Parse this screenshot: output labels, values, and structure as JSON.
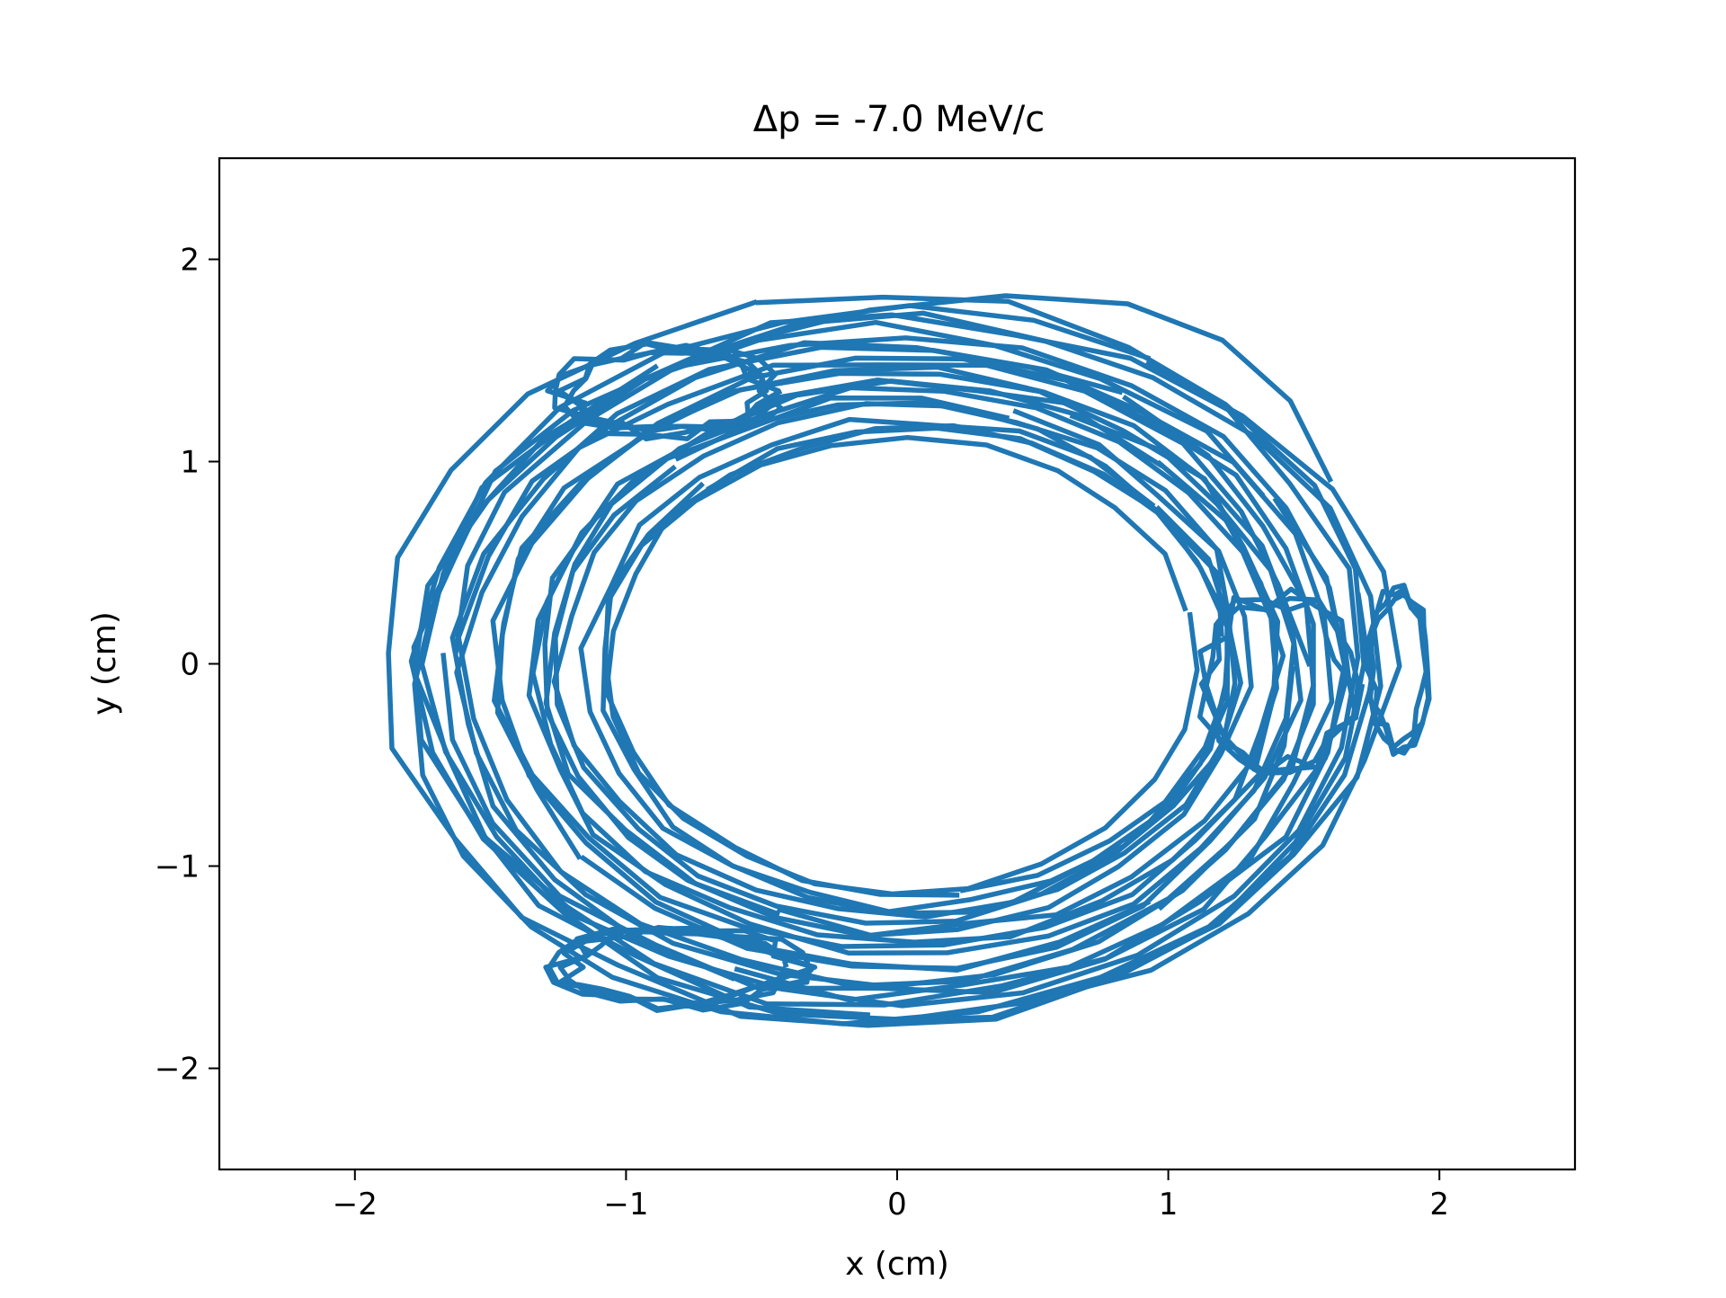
{
  "chart_data": {
    "type": "line",
    "title": "Δp = -7.0 MeV/c",
    "xlabel": "x (cm)",
    "ylabel": "y (cm)",
    "xlim": [
      -2.5,
      2.5
    ],
    "ylim": [
      -2.5,
      2.5
    ],
    "xticks": [
      -2,
      -1,
      0,
      1,
      2
    ],
    "yticks": [
      -2,
      -1,
      0,
      1,
      2
    ],
    "xtick_labels": [
      "−2",
      "−1",
      "0",
      "1",
      "2"
    ],
    "ytick_labels": [
      "−2",
      "−1",
      "0",
      "1",
      "2"
    ],
    "grid": false,
    "legend": "none",
    "color": "#1f77b4",
    "series": [
      {
        "x": [
          1.6,
          1.45,
          1.2,
          0.85,
          0.4,
          -0.1,
          -0.55,
          -0.95,
          -1.3,
          -1.55,
          -1.7,
          -1.78,
          -1.75,
          -1.6,
          -1.35,
          -1.05,
          -0.65,
          -0.2,
          0.3,
          0.75,
          1.15,
          1.45,
          1.65,
          1.75,
          1.7
        ],
        "y": [
          0.9,
          1.3,
          1.6,
          1.78,
          1.82,
          1.75,
          1.6,
          1.4,
          1.12,
          0.75,
          0.35,
          -0.1,
          -0.55,
          -0.95,
          -1.3,
          -1.55,
          -1.72,
          -1.78,
          -1.72,
          -1.55,
          -1.3,
          -0.95,
          -0.55,
          -0.1,
          0.35
        ]
      }
    ],
    "ellipse_family": {
      "rings": 22,
      "outer_semi_axes": [
        1.82,
        1.8
      ],
      "inner_semi_axes": [
        1.1,
        1.12
      ],
      "outer_center": [
        -0.02,
        0.0
      ],
      "inner_center": [
        0.02,
        0.0
      ],
      "points_per_ring": 24
    },
    "small_loops": [
      {
        "center": [
          1.85,
          -0.02
        ],
        "semi_axes": [
          0.12,
          0.45
        ],
        "turns": 3
      },
      {
        "center": [
          1.4,
          -0.1
        ],
        "semi_axes": [
          0.32,
          0.5
        ],
        "turns": 3
      },
      {
        "center": [
          -0.85,
          1.35
        ],
        "semi_axes": [
          0.45,
          0.25
        ],
        "turns": 4
      },
      {
        "center": [
          -0.8,
          -1.5
        ],
        "semi_axes": [
          0.5,
          0.22
        ],
        "turns": 4
      }
    ]
  }
}
